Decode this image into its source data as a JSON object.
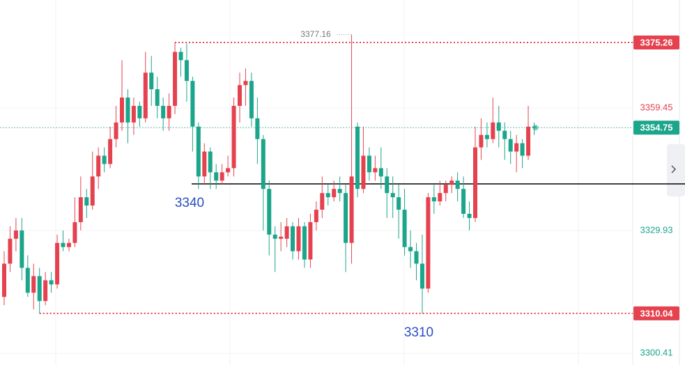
{
  "chart_data": {
    "type": "candlestick",
    "open": [
      3314,
      3322,
      3328,
      3330,
      3321,
      3315,
      3319,
      3313,
      3318,
      3317,
      3327,
      3326,
      3327,
      3332,
      3338,
      3336,
      3343,
      3348,
      3346,
      3352,
      3356,
      3362,
      3356,
      3360,
      3357,
      3368,
      3364,
      3360,
      3357,
      3360,
      3373,
      3371,
      3366,
      3355,
      3343,
      3349,
      3344,
      3342,
      3344,
      3345,
      3360,
      3365,
      3366,
      3357,
      3352,
      3340,
      3329,
      3328,
      3328,
      3331,
      3325,
      3331,
      3323,
      3332,
      3335,
      3339,
      3338,
      3340,
      3339,
      3327,
      3355,
      3340,
      3348,
      3344,
      3345,
      3343,
      3339,
      3338,
      3335,
      3326,
      3325,
      3322,
      3316,
      3338,
      3337,
      3339,
      3341,
      3342,
      3340,
      3334,
      3333,
      3350,
      3353,
      3352,
      3356,
      3354,
      3352,
      3349,
      3351,
      3348,
      3355
    ],
    "high": [
      3325,
      3331,
      3333,
      3333,
      3324,
      3322,
      3321,
      3320,
      3320,
      3329,
      3330,
      3328,
      3338,
      3343,
      3340,
      3349,
      3350,
      3350,
      3355,
      3360,
      3371,
      3364,
      3362,
      3361,
      3373,
      3372,
      3367,
      3362,
      3363,
      3375.26,
      3374,
      3375,
      3367,
      3356,
      3351,
      3350,
      3346,
      3346,
      3348,
      3362,
      3368,
      3369,
      3368,
      3362,
      3353,
      3342,
      3331,
      3332,
      3333,
      3332,
      3333,
      3332,
      3334,
      3337,
      3343,
      3341,
      3342,
      3343,
      3341,
      3377.16,
      3356,
      3355,
      3350,
      3348,
      3350,
      3345,
      3343,
      3341,
      3340,
      3330,
      3327,
      3329,
      3339,
      3341,
      3342,
      3342,
      3343,
      3344,
      3343,
      3337,
      3355,
      3357,
      3356,
      3362,
      3360,
      3356,
      3354,
      3353,
      3352,
      3360,
      3356
    ],
    "low": [
      3312,
      3320,
      3325,
      3318,
      3314,
      3311,
      3310.04,
      3312,
      3315,
      3316,
      3325,
      3325,
      3326,
      3330,
      3333,
      3335,
      3340,
      3344,
      3345,
      3350,
      3354,
      3351,
      3353,
      3355,
      3356,
      3360,
      3357,
      3354,
      3354,
      3358,
      3367,
      3361,
      3349,
      3340,
      3341,
      3340,
      3340,
      3341,
      3343,
      3343,
      3356,
      3360,
      3355,
      3346,
      3330,
      3324,
      3320,
      3325,
      3326,
      3323,
      3323,
      3321,
      3321,
      3330,
      3333,
      3336,
      3337,
      3337,
      3320,
      3322,
      3338,
      3339,
      3342,
      3342,
      3340,
      3333,
      3333,
      3328,
      3324,
      3321,
      3318,
      3310.04,
      3315,
      3334,
      3336,
      3337,
      3339,
      3337,
      3333,
      3330,
      3332,
      3347,
      3350,
      3351,
      3350,
      3347,
      3346,
      3344,
      3345,
      3347,
      3353
    ],
    "close": [
      3322,
      3328,
      3330,
      3321,
      3315,
      3319,
      3313,
      3318,
      3317,
      3327,
      3326,
      3327,
      3332,
      3338,
      3336,
      3343,
      3348,
      3346,
      3352,
      3356,
      3362,
      3356,
      3360,
      3357,
      3368,
      3364,
      3360,
      3357,
      3360,
      3373,
      3371,
      3366,
      3355,
      3343,
      3349,
      3344,
      3342,
      3344,
      3345,
      3360,
      3365,
      3366,
      3357,
      3352,
      3340,
      3329,
      3328,
      3328.5,
      3331,
      3325,
      3331,
      3323,
      3332,
      3335,
      3339,
      3338,
      3340,
      3339,
      3327,
      3343,
      3340,
      3348,
      3344,
      3345,
      3343,
      3339,
      3338,
      3335,
      3326,
      3325,
      3322,
      3316,
      3338,
      3337,
      3339,
      3341,
      3342,
      3340,
      3334,
      3333,
      3350,
      3353,
      3352,
      3356,
      3354,
      3352,
      3349,
      3351,
      3348,
      3355,
      3354.75
    ],
    "up_color": "#e5424f",
    "down_color": "#1ba58a",
    "ylim": [
      3297.6,
      3385.49
    ],
    "yticks": [
      3359.45,
      3329.93,
      3300.41
    ],
    "range_high": 3375.26,
    "range_low": 3310.04,
    "last_price": 3354.75,
    "peak": 3377.16,
    "support_line": 3341.2,
    "notes": [
      "3340",
      "3310"
    ]
  }
}
